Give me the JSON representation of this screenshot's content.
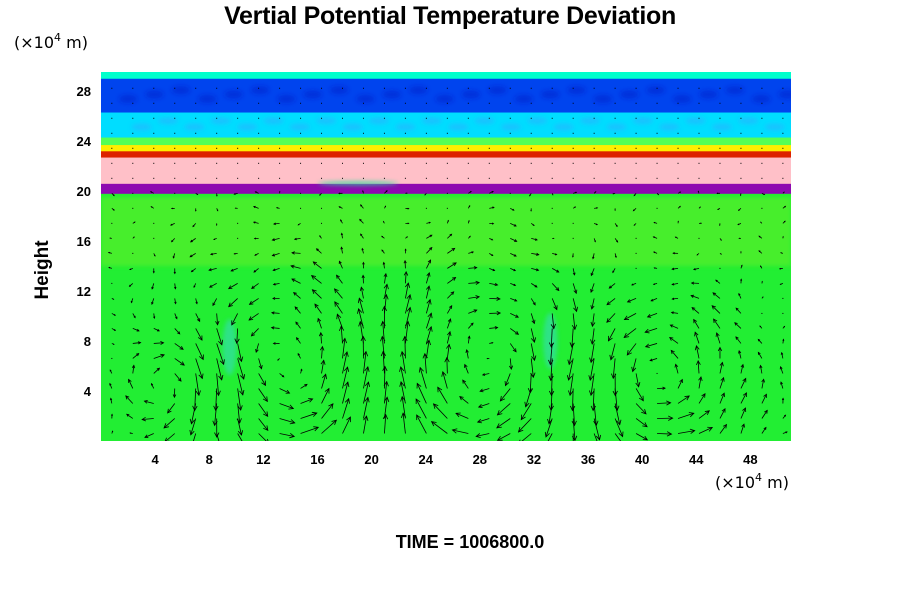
{
  "chart_data": {
    "type": "heatmap",
    "title": "Vertial Potential Temperature Deviation",
    "ylabel": "Height",
    "xlabel": "",
    "x_unit": {
      "prefix": "(×10",
      "exp": "4",
      "suffix": " m)"
    },
    "y_unit": {
      "prefix": "(×10",
      "exp": "4",
      "suffix": " m)"
    },
    "xlim": [
      0,
      51
    ],
    "ylim": [
      0,
      29.5
    ],
    "x_ticks": [
      4,
      8,
      12,
      16,
      20,
      24,
      28,
      32,
      36,
      40,
      44,
      48
    ],
    "y_ticks": [
      4,
      8,
      12,
      16,
      20,
      24,
      28
    ],
    "grid": false,
    "overlay": "velocity-vectors",
    "bands": [
      {
        "y0": 0,
        "y1": 19.8,
        "color": "#22ee33"
      },
      {
        "y0": 19.8,
        "y1": 20.6,
        "color": "#8e0ab0"
      },
      {
        "y0": 20.6,
        "y1": 22.7,
        "color": "#ffc0c8"
      },
      {
        "y0": 22.7,
        "y1": 23.2,
        "color": "#dd2200"
      },
      {
        "y0": 23.2,
        "y1": 23.7,
        "color": "#ffee00"
      },
      {
        "y0": 23.7,
        "y1": 24.3,
        "color": "#55ff55"
      },
      {
        "y0": 24.3,
        "y1": 26.3,
        "color": "#00ddff"
      },
      {
        "y0": 26.3,
        "y1": 29.0,
        "color": "#0044ee"
      },
      {
        "y0": 29.0,
        "y1": 29.5,
        "color": "#00ffcc"
      }
    ],
    "vortices": [
      {
        "cx": 14,
        "cy": 6.5,
        "r": 6
      },
      {
        "cx": 28,
        "cy": 6.5,
        "r": 6
      },
      {
        "cx": 40.5,
        "cy": 5.5,
        "r": 4.5
      },
      {
        "cx": 6,
        "cy": 5,
        "r": 3
      }
    ]
  },
  "footer": {
    "label": "TIME = 1006800.0"
  }
}
